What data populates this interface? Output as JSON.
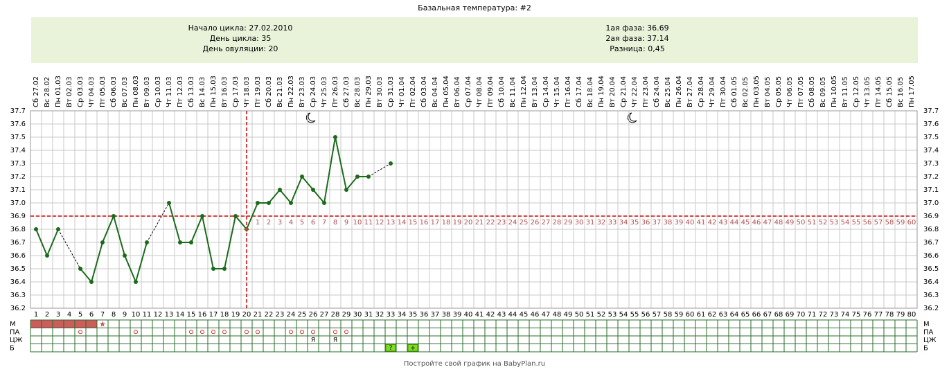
{
  "chart_data": {
    "type": "line",
    "title": "Базальная температура: #2",
    "summary_left": [
      "Начало цикла: 27.02.2010",
      "День цикла: 35",
      "День овуляции: 20"
    ],
    "summary_right": [
      "1ая фаза: 36.69",
      "2ая фаза: 37.14",
      "Разница: 0,45"
    ],
    "categories": [
      "Сб 27.02",
      "Вс 28.02",
      "Пн 01.03",
      "Вт 02.03",
      "Ср 03.03",
      "Чт 04.03",
      "Пт 05.03",
      "Сб 06.03",
      "Вс 07.03",
      "Пн 08.03",
      "Вт 09.03",
      "Ср 10.03",
      "Чт 11.03",
      "Пт 12.03",
      "Сб 13.03",
      "Вс 14.03",
      "Пн 15.03",
      "Вт 16.03",
      "Ср 17.03",
      "Чт 18.03",
      "Пт 19.03",
      "Сб 20.03",
      "Вс 21.03",
      "Пн 22.03",
      "Вт 23.03",
      "Ср 24.03",
      "Чт 25.03",
      "Пт 26.03",
      "Сб 27.03",
      "Вс 28.03",
      "Пн 29.03",
      "Вт 30.03",
      "Ср 31.03",
      "Чт 01.04",
      "Пт 02.04",
      "Сб 03.04",
      "Вс 04.04",
      "Пн 05.04",
      "Вт 06.04",
      "Ср 07.04",
      "Чт 08.04",
      "Пт 09.04",
      "Сб 10.04",
      "Вс 11.04",
      "Пн 12.04",
      "Вт 13.04",
      "Ср 14.04",
      "Чт 15.04",
      "Пт 16.04",
      "Сб 17.04",
      "Вс 18.04",
      "Пн 19.04",
      "Вт 20.04",
      "Ср 21.04",
      "Чт 22.04",
      "Пт 23.04",
      "Сб 24.04",
      "Вс 25.04",
      "Пн 26.04",
      "Вт 27.04",
      "Ср 28.04",
      "Чт 29.04",
      "Пт 30.04",
      "Сб 01.05",
      "Вс 02.05",
      "Пн 03.05",
      "Вт 04.05",
      "Ср 05.05",
      "Чт 06.05",
      "Пт 07.05",
      "Сб 08.05",
      "Вс 09.05",
      "Пн 10.05",
      "Вт 11.05",
      "Ср 12.05",
      "Чт 13.05",
      "Пт 14.05",
      "Сб 15.05",
      "Вс 16.05",
      "Пн 17.05"
    ],
    "day_numbers": [
      1,
      2,
      3,
      4,
      5,
      6,
      7,
      8,
      9,
      10,
      11,
      12,
      13,
      14,
      15,
      16,
      17,
      18,
      19,
      20,
      21,
      22,
      23,
      24,
      25,
      26,
      27,
      28,
      29,
      30,
      31,
      32,
      33,
      34,
      35,
      36,
      37,
      38,
      39,
      40,
      41,
      42,
      43,
      44,
      45,
      46,
      47,
      48,
      49,
      50,
      51,
      52,
      53,
      54,
      55,
      56,
      57,
      58,
      59,
      60,
      61,
      62,
      63,
      64,
      65,
      66,
      67,
      68,
      69,
      70,
      71,
      72,
      73,
      74,
      75,
      76,
      77,
      78,
      79,
      80
    ],
    "series": [
      {
        "color": "#1a6b1a",
        "values": [
          36.8,
          36.6,
          36.8,
          null,
          36.5,
          36.4,
          36.7,
          36.9,
          36.6,
          36.4,
          36.7,
          null,
          37.0,
          36.7,
          36.7,
          36.9,
          36.5,
          36.5,
          36.9,
          36.8,
          37.0,
          37.0,
          37.1,
          37.0,
          37.2,
          37.1,
          37.0,
          37.5,
          37.1,
          37.2,
          37.2,
          null,
          37.3,
          null,
          null,
          null,
          null,
          null,
          null,
          null,
          null,
          null,
          null,
          null,
          null,
          null,
          null,
          null,
          null,
          null,
          null,
          null,
          null,
          null,
          null,
          null,
          null,
          null,
          null,
          null,
          null,
          null,
          null,
          null,
          null,
          null,
          null,
          null,
          null,
          null,
          null,
          null,
          null,
          null,
          null,
          null,
          null,
          null,
          null,
          null
        ]
      }
    ],
    "ylim": [
      36.2,
      37.7
    ],
    "yticks": [
      36.2,
      36.3,
      36.4,
      36.5,
      36.6,
      36.7,
      36.8,
      36.9,
      {
        "value": 37,
        "label": "37.0"
      },
      37.1,
      37.2,
      37.3,
      37.4,
      37.5,
      37.6,
      37.7
    ],
    "grid": true,
    "coverline": 36.9,
    "ovulation_day": 20,
    "phase_days": [
      1,
      2,
      3,
      4,
      5,
      6,
      7,
      8,
      9,
      10,
      11,
      12,
      13,
      14,
      15,
      16,
      17,
      18,
      19,
      20,
      21,
      22,
      23,
      24,
      25,
      26,
      27,
      28,
      29,
      30,
      31,
      32,
      33,
      34,
      35,
      36,
      37,
      38,
      39,
      40,
      41,
      42,
      43,
      44,
      45,
      46,
      47,
      48,
      49,
      50,
      51,
      52,
      53,
      54,
      55,
      56,
      57,
      58,
      59,
      60
    ],
    "row_labels": [
      "М",
      "ПА",
      "ЦЖ",
      "Б"
    ],
    "menstruation_days": [
      1,
      2,
      3,
      4,
      5,
      6
    ],
    "spotting_days": [
      7
    ],
    "pa_days": [
      5,
      10,
      15,
      16,
      17,
      18,
      20,
      21,
      24,
      25,
      26,
      28,
      29
    ],
    "cervix": [
      {
        "day": 26,
        "label": "Я"
      },
      {
        "day": 28,
        "label": "Я"
      }
    ],
    "tests": [
      {
        "day": 33,
        "label": "?"
      },
      {
        "day": 35,
        "label": "+"
      }
    ],
    "footer": "Постройте свой график на BabyPlan.ru"
  }
}
